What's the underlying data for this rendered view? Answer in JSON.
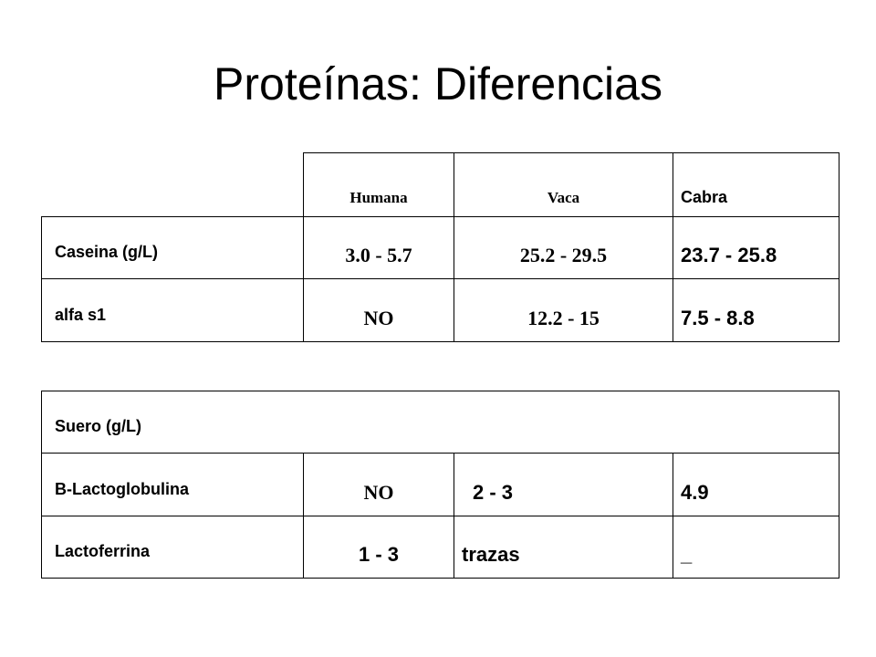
{
  "title": "Proteínas: Diferencias",
  "table_top": {
    "headers": [
      "",
      "Humana",
      "Vaca",
      "Cabra"
    ],
    "rows": [
      {
        "label": "Caseina (g/L)",
        "cells": [
          "3.0 - 5.7",
          "25.2 - 29.5",
          "23.7 - 25.8"
        ]
      },
      {
        "label": "alfa s1",
        "cells": [
          "NO",
          "12.2 - 15",
          "7.5 - 8.8"
        ]
      }
    ]
  },
  "table_bottom": {
    "section": "Suero (g/L)",
    "rows": [
      {
        "label": "B-Lactoglobulina",
        "cells": [
          "NO",
          "2 - 3",
          "4.9"
        ]
      },
      {
        "label": "Lactoferrina",
        "cells": [
          "1 - 3",
          "trazas",
          "_"
        ]
      }
    ]
  }
}
